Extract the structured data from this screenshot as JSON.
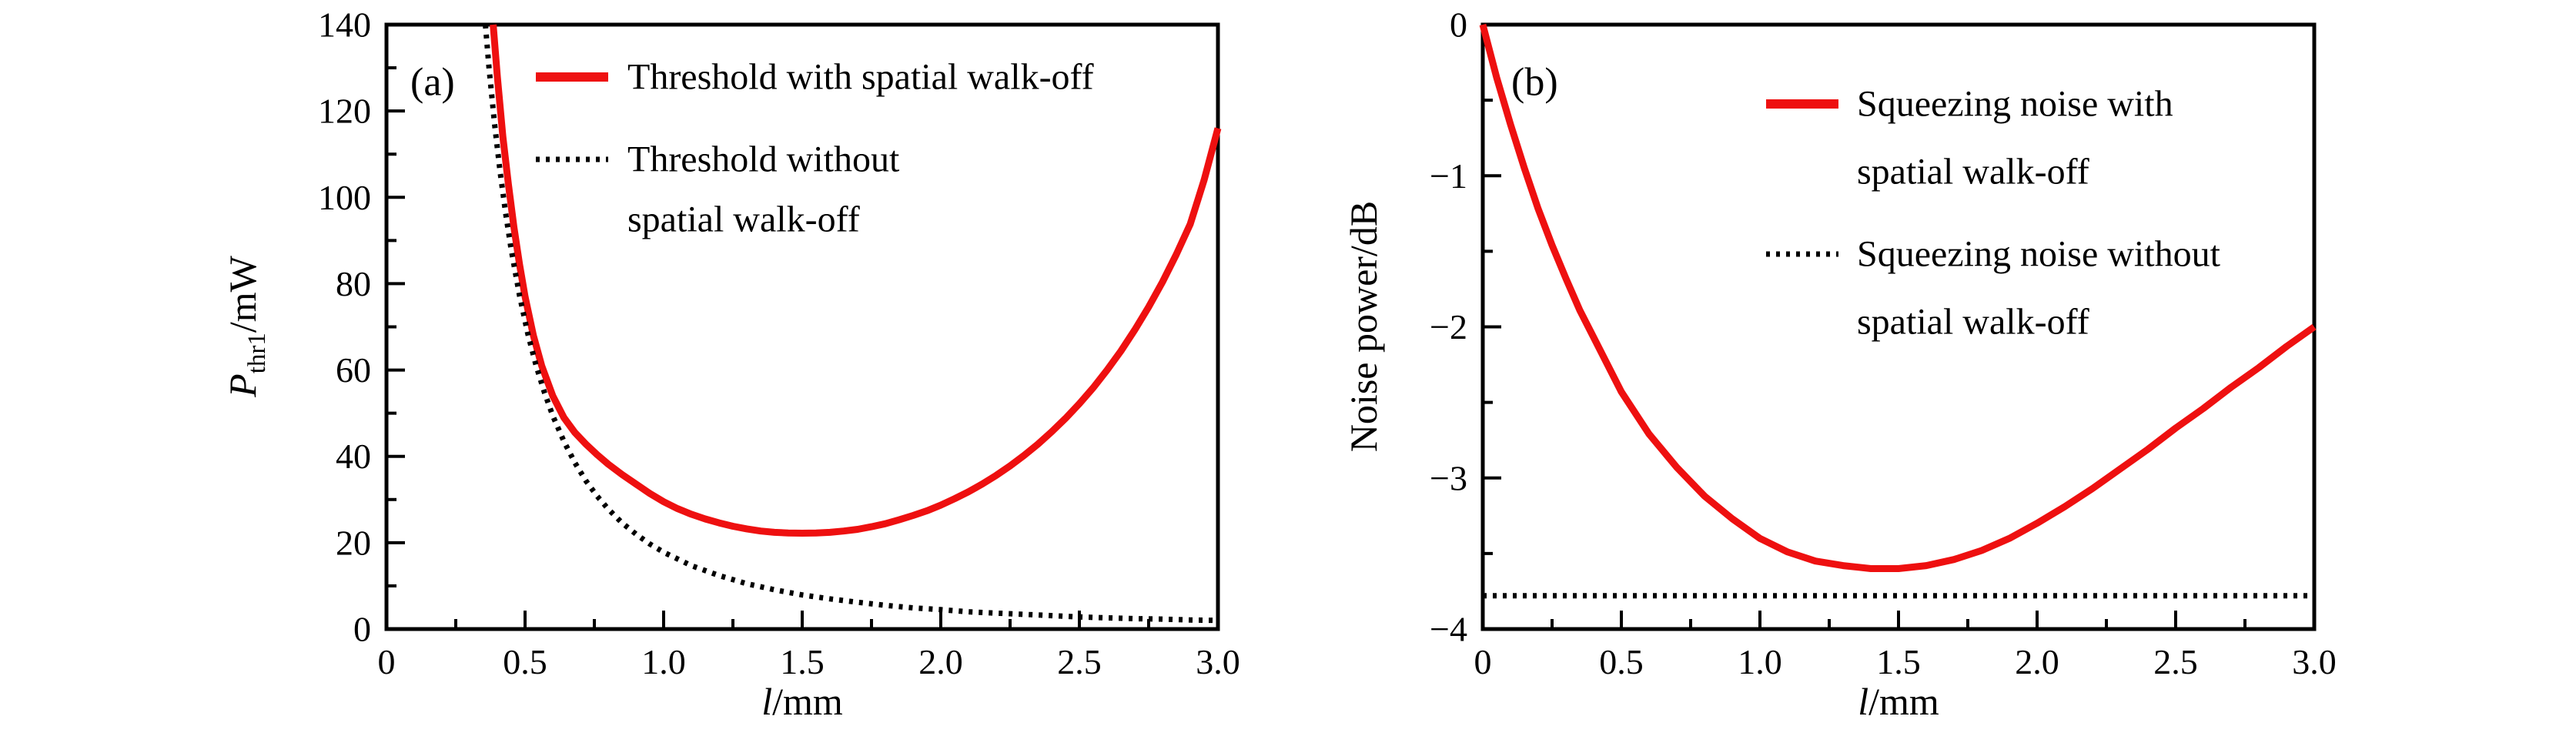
{
  "figure": {
    "background": "#ffffff",
    "description": "Two-panel physics figure: OPO threshold power and squeezing noise versus crystal length"
  },
  "colors": {
    "accent_red": "#ee1010",
    "black": "#000000"
  },
  "chart_data": [
    {
      "type": "line",
      "panel_label": "(a)",
      "xlabel_italic": "l",
      "xlabel_rest": "/mm",
      "ylabel_main_italic": "P",
      "ylabel_sub": "thr1",
      "ylabel_rest": "/mW",
      "xlim": [
        0,
        3
      ],
      "ylim": [
        0,
        140
      ],
      "grid": false,
      "legend_position": "top-left-inside",
      "xticks": {
        "values": [
          0,
          0.5,
          1.0,
          1.5,
          2.0,
          2.5,
          3.0
        ],
        "labels": [
          "0",
          "0.5",
          "1.0",
          "1.5",
          "2.0",
          "2.5",
          "3.0"
        ],
        "minor_step": 0.25
      },
      "yticks": {
        "values": [
          0,
          20,
          40,
          60,
          80,
          100,
          120,
          140
        ],
        "labels": [
          "0",
          "20",
          "40",
          "60",
          "80",
          "100",
          "120",
          "140"
        ],
        "minor_step": 10
      },
      "series": [
        {
          "name": "Threshold with spatial walk-off",
          "legend_lines": [
            "Threshold with spatial walk-off"
          ],
          "color": "#ee1010",
          "style": "solid",
          "points": [
            [
              0.385,
              140
            ],
            [
              0.4,
              128
            ],
            [
              0.42,
              114
            ],
            [
              0.44,
              103
            ],
            [
              0.46,
              93
            ],
            [
              0.48,
              84.5
            ],
            [
              0.5,
              77
            ],
            [
              0.53,
              68
            ],
            [
              0.56,
              61
            ],
            [
              0.6,
              54
            ],
            [
              0.64,
              49
            ],
            [
              0.68,
              45.5
            ],
            [
              0.72,
              42.8
            ],
            [
              0.76,
              40.4
            ],
            [
              0.8,
              38.2
            ],
            [
              0.85,
              35.8
            ],
            [
              0.9,
              33.6
            ],
            [
              0.95,
              31.4
            ],
            [
              1.0,
              29.5
            ],
            [
              1.05,
              27.9
            ],
            [
              1.1,
              26.6
            ],
            [
              1.15,
              25.5
            ],
            [
              1.2,
              24.6
            ],
            [
              1.25,
              23.8
            ],
            [
              1.3,
              23.2
            ],
            [
              1.35,
              22.7
            ],
            [
              1.4,
              22.4
            ],
            [
              1.45,
              22.25
            ],
            [
              1.5,
              22.2
            ],
            [
              1.55,
              22.25
            ],
            [
              1.6,
              22.4
            ],
            [
              1.65,
              22.7
            ],
            [
              1.7,
              23.1
            ],
            [
              1.75,
              23.7
            ],
            [
              1.8,
              24.4
            ],
            [
              1.85,
              25.3
            ],
            [
              1.9,
              26.3
            ],
            [
              1.95,
              27.4
            ],
            [
              2.0,
              28.7
            ],
            [
              2.05,
              30.2
            ],
            [
              2.1,
              31.8
            ],
            [
              2.15,
              33.6
            ],
            [
              2.2,
              35.6
            ],
            [
              2.25,
              37.8
            ],
            [
              2.3,
              40.2
            ],
            [
              2.35,
              42.8
            ],
            [
              2.4,
              45.7
            ],
            [
              2.45,
              48.8
            ],
            [
              2.5,
              52.2
            ],
            [
              2.55,
              55.9
            ],
            [
              2.6,
              60
            ],
            [
              2.65,
              64.4
            ],
            [
              2.7,
              69.3
            ],
            [
              2.75,
              74.6
            ],
            [
              2.8,
              80.4
            ],
            [
              2.85,
              86.8
            ],
            [
              2.9,
              93.8
            ],
            [
              2.95,
              104
            ],
            [
              3.0,
              116
            ]
          ]
        },
        {
          "name": "Threshold without spatial walk-off",
          "legend_lines": [
            "Threshold without",
            "spatial walk-off"
          ],
          "color": "#000000",
          "style": "dotted",
          "points": [
            [
              0.357,
              140
            ],
            [
              0.37,
              130
            ],
            [
              0.39,
              117
            ],
            [
              0.41,
              105.9
            ],
            [
              0.43,
              96.3
            ],
            [
              0.45,
              87.9
            ],
            [
              0.48,
              77.3
            ],
            [
              0.51,
              68.4
            ],
            [
              0.54,
              61
            ],
            [
              0.57,
              54.8
            ],
            [
              0.6,
              49.4
            ],
            [
              0.64,
              43.5
            ],
            [
              0.68,
              38.5
            ],
            [
              0.72,
              34.3
            ],
            [
              0.76,
              30.8
            ],
            [
              0.8,
              27.8
            ],
            [
              0.85,
              24.6
            ],
            [
              0.9,
              22
            ],
            [
              0.95,
              19.7
            ],
            [
              1.0,
              17.8
            ],
            [
              1.1,
              14.7
            ],
            [
              1.2,
              12.4
            ],
            [
              1.3,
              10.5
            ],
            [
              1.4,
              9.1
            ],
            [
              1.5,
              7.9
            ],
            [
              1.6,
              7
            ],
            [
              1.7,
              6.2
            ],
            [
              1.8,
              5.5
            ],
            [
              1.9,
              4.9
            ],
            [
              2.0,
              4.5
            ],
            [
              2.1,
              4
            ],
            [
              2.2,
              3.7
            ],
            [
              2.3,
              3.4
            ],
            [
              2.4,
              3.1
            ],
            [
              2.5,
              2.8
            ],
            [
              2.6,
              2.6
            ],
            [
              2.7,
              2.4
            ],
            [
              2.8,
              2.3
            ],
            [
              2.9,
              2.1
            ],
            [
              3.0,
              2.0
            ]
          ]
        }
      ]
    },
    {
      "type": "line",
      "panel_label": "(b)",
      "xlabel_italic": "l",
      "xlabel_rest": "/mm",
      "ylabel_main_italic": "",
      "ylabel_sub": "",
      "ylabel_rest": "Noise power/dB",
      "xlim": [
        0,
        3
      ],
      "ylim": [
        -4,
        0
      ],
      "grid": false,
      "legend_position": "top-center-inside",
      "xticks": {
        "values": [
          0,
          0.5,
          1.0,
          1.5,
          2.0,
          2.5,
          3.0
        ],
        "labels": [
          "0",
          "0.5",
          "1.0",
          "1.5",
          "2.0",
          "2.5",
          "3.0"
        ],
        "minor_step": 0.25
      },
      "yticks": {
        "values": [
          0,
          -1,
          -2,
          -3,
          -4
        ],
        "labels": [
          "0",
          "−1",
          "−2",
          "−3",
          "−4"
        ],
        "minor_step": 0.5
      },
      "series": [
        {
          "name": "Squeezing noise with spatial walk-off",
          "legend_lines": [
            "Squeezing noise with",
            "spatial walk-off"
          ],
          "color": "#ee1010",
          "style": "solid",
          "points": [
            [
              0,
              0
            ],
            [
              0.05,
              -0.35
            ],
            [
              0.1,
              -0.66
            ],
            [
              0.15,
              -0.95
            ],
            [
              0.2,
              -1.22
            ],
            [
              0.25,
              -1.46
            ],
            [
              0.3,
              -1.68
            ],
            [
              0.35,
              -1.89
            ],
            [
              0.4,
              -2.07
            ],
            [
              0.45,
              -2.25
            ],
            [
              0.5,
              -2.43
            ],
            [
              0.6,
              -2.71
            ],
            [
              0.7,
              -2.93
            ],
            [
              0.8,
              -3.12
            ],
            [
              0.9,
              -3.27
            ],
            [
              1.0,
              -3.4
            ],
            [
              1.1,
              -3.49
            ],
            [
              1.2,
              -3.55
            ],
            [
              1.3,
              -3.58
            ],
            [
              1.4,
              -3.6
            ],
            [
              1.5,
              -3.6
            ],
            [
              1.6,
              -3.58
            ],
            [
              1.7,
              -3.54
            ],
            [
              1.8,
              -3.48
            ],
            [
              1.9,
              -3.4
            ],
            [
              2.0,
              -3.3
            ],
            [
              2.1,
              -3.19
            ],
            [
              2.2,
              -3.07
            ],
            [
              2.3,
              -2.94
            ],
            [
              2.4,
              -2.81
            ],
            [
              2.5,
              -2.67
            ],
            [
              2.6,
              -2.54
            ],
            [
              2.7,
              -2.4
            ],
            [
              2.8,
              -2.27
            ],
            [
              2.9,
              -2.13
            ],
            [
              3.0,
              -2.0
            ]
          ]
        },
        {
          "name": "Squeezing noise without spatial walk-off",
          "legend_lines": [
            "Squeezing noise without",
            "spatial walk-off"
          ],
          "color": "#000000",
          "style": "dotted",
          "points": [
            [
              0,
              -3.78
            ],
            [
              3,
              -3.78
            ]
          ]
        }
      ]
    }
  ]
}
